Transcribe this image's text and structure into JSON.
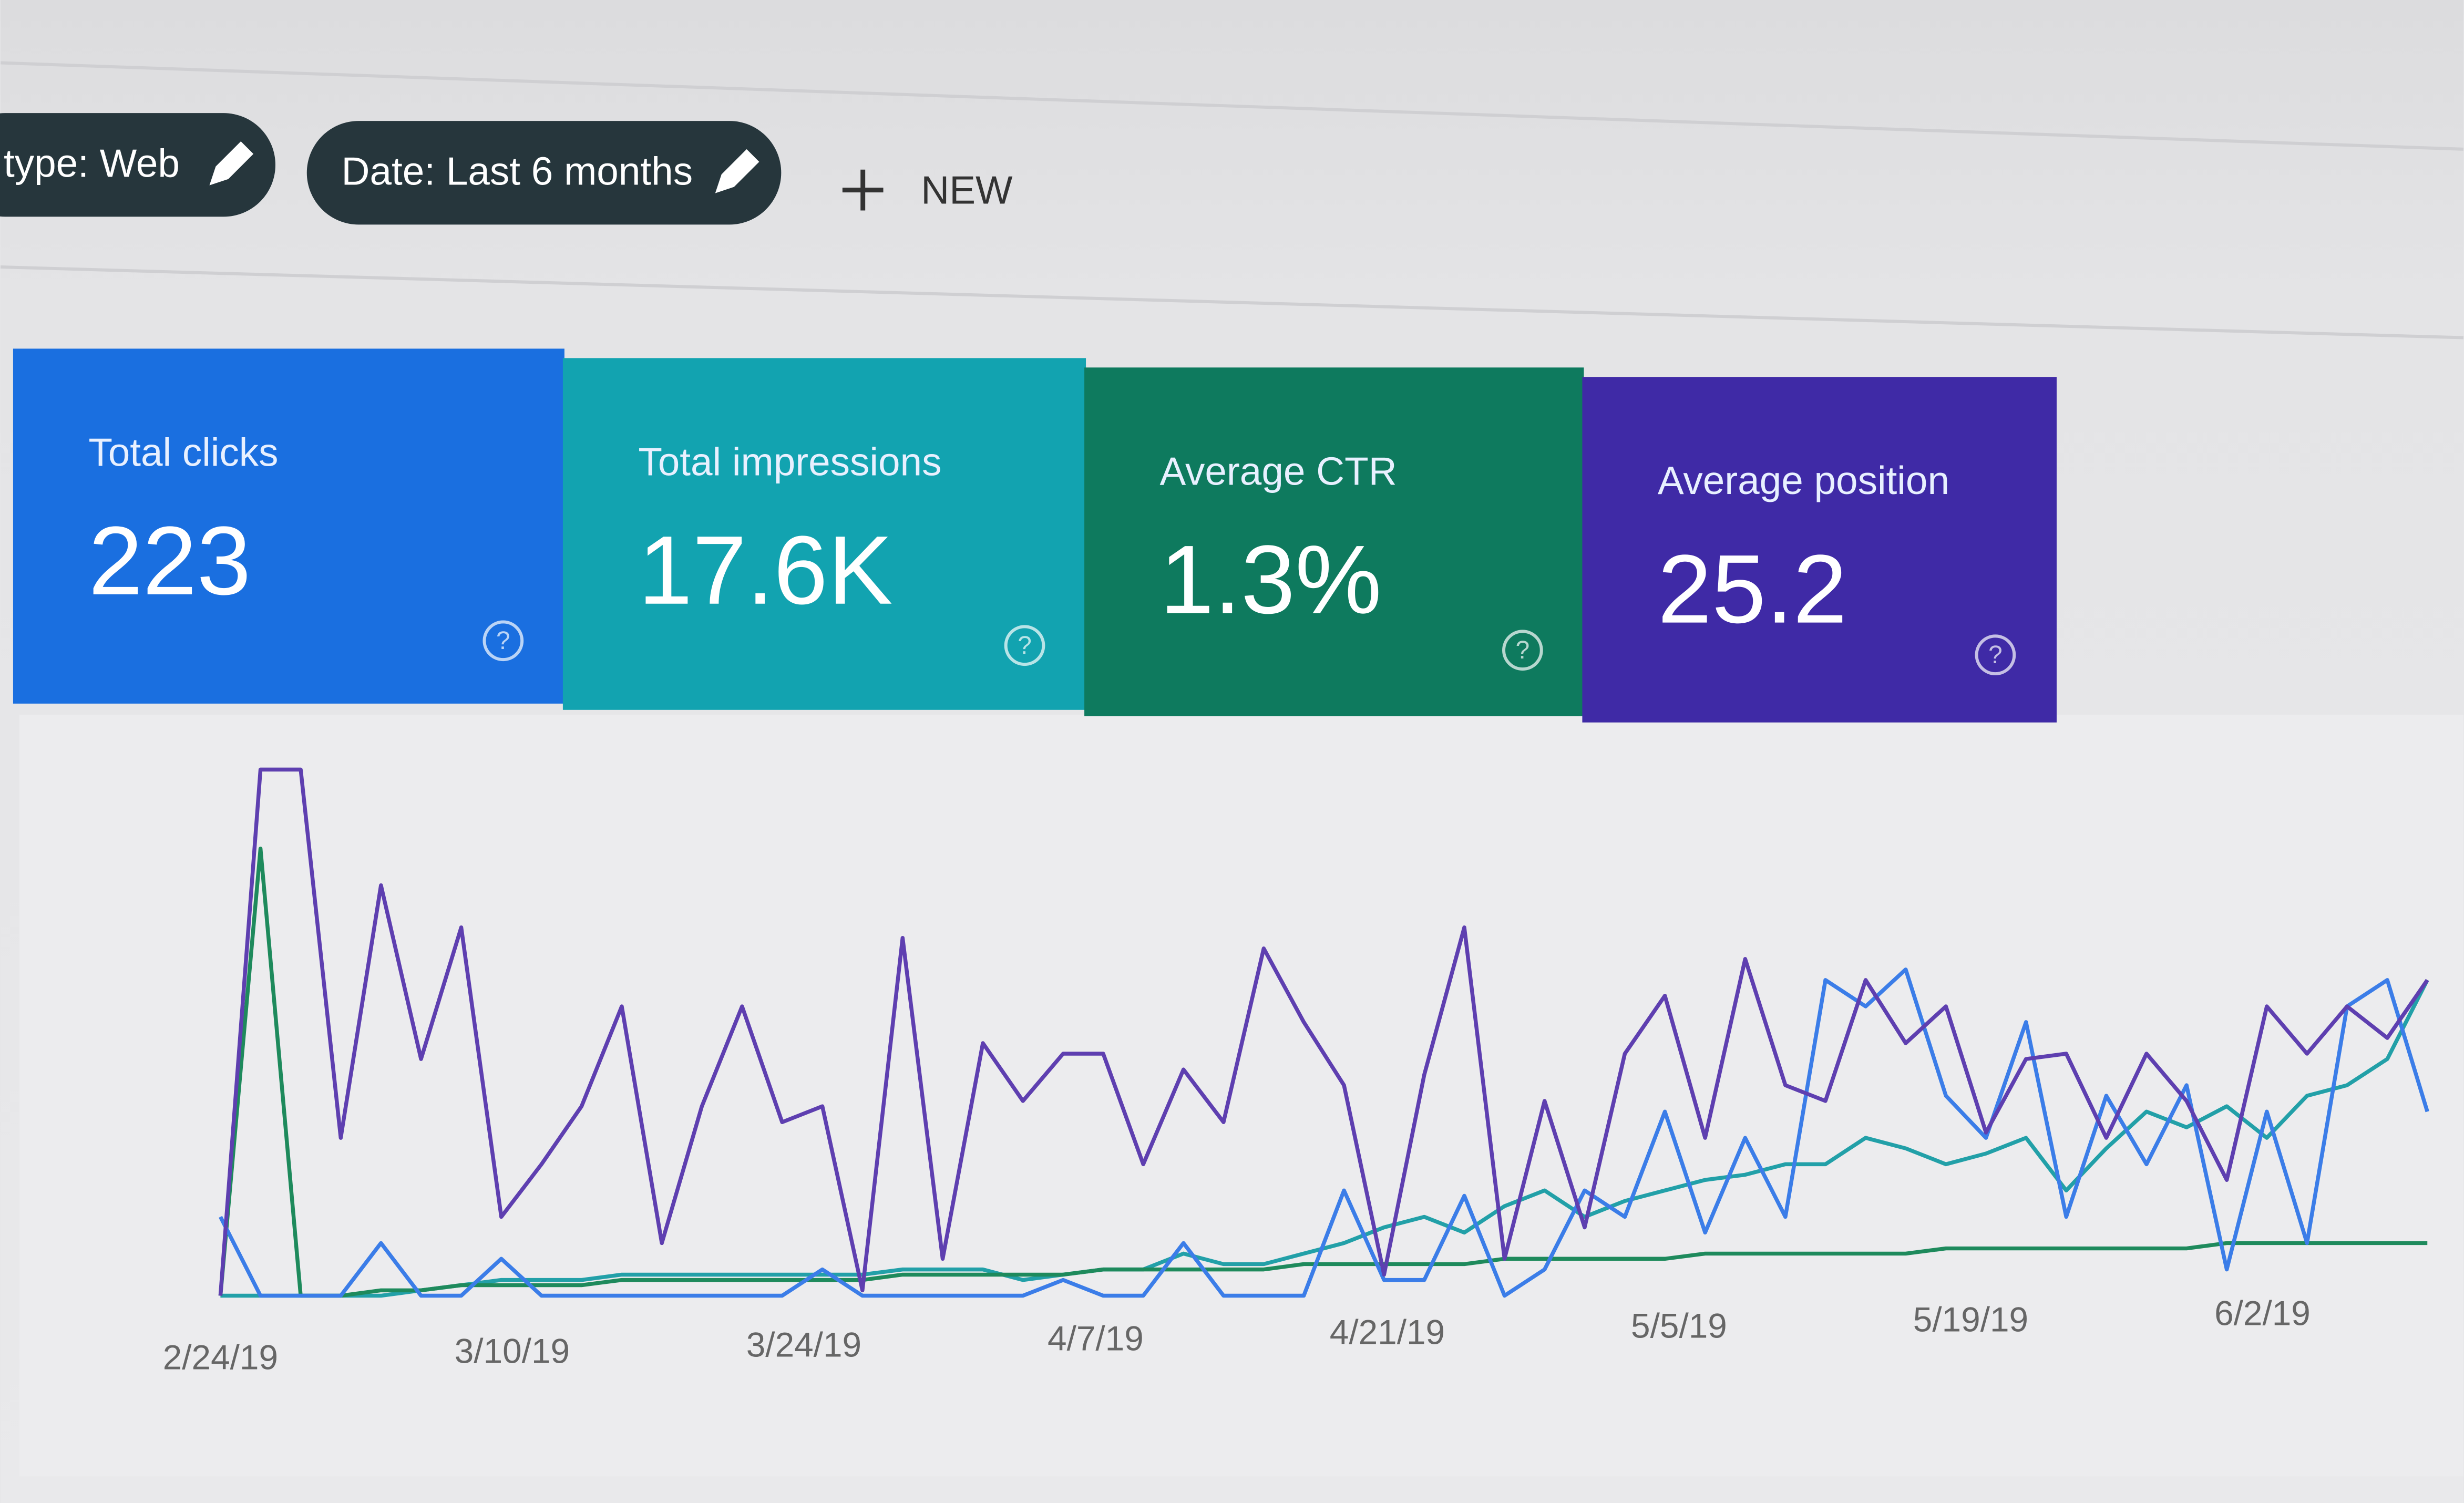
{
  "filters": [
    "type: Web",
    "Date: Last 6 months"
  ],
  "new_button": "NEW",
  "cards": [
    {
      "label": "Total clicks",
      "value": "223",
      "color": "#1a6fe0",
      "line_color": "#3b7de8",
      "trend": [
        15,
        0,
        0,
        0,
        10,
        0,
        0,
        7,
        0,
        0,
        0,
        0,
        0,
        0,
        0,
        5,
        0,
        0,
        0,
        0,
        0,
        3,
        0,
        0,
        10,
        0,
        0,
        0,
        20,
        3,
        3,
        19,
        0,
        5,
        20,
        15,
        35,
        12,
        30,
        15,
        60,
        55,
        62,
        38,
        30,
        52,
        15,
        38,
        25,
        40,
        5,
        35,
        10,
        55,
        60,
        35
      ]
    },
    {
      "label": "Total impressions",
      "value": "17.6K",
      "color": "#12a3b0",
      "line_color": "#5e3fb0",
      "trend": [
        0,
        100,
        100,
        30,
        78,
        45,
        70,
        15,
        25,
        36,
        55,
        10,
        36,
        55,
        33,
        36,
        1,
        68,
        7,
        48,
        37,
        46,
        46,
        25,
        43,
        33,
        66,
        52,
        40,
        4,
        42,
        70,
        7,
        37,
        13,
        46,
        57,
        30,
        64,
        40,
        37,
        60,
        48,
        55,
        31,
        45,
        46,
        30,
        46,
        37,
        22,
        55,
        46,
        55,
        49,
        60
      ]
    },
    {
      "label": "Average CTR",
      "value": "1.3%",
      "color": "#0e7a5e",
      "line_color": "#1e8a5c",
      "trend": [
        0,
        85,
        0,
        0,
        1,
        1,
        2,
        2,
        2,
        2,
        3,
        3,
        3,
        3,
        3,
        3,
        3,
        4,
        4,
        4,
        4,
        4,
        5,
        5,
        5,
        5,
        5,
        6,
        6,
        6,
        6,
        6,
        7,
        7,
        7,
        7,
        7,
        8,
        8,
        8,
        8,
        8,
        8,
        9,
        9,
        9,
        9,
        9,
        9,
        9,
        10,
        10,
        10,
        10,
        10,
        10
      ]
    },
    {
      "label": "Average position",
      "value": "25.2",
      "color": "#3f2aa6",
      "line_color": "#22a0a8",
      "trend": [
        0,
        0,
        0,
        0,
        0,
        1,
        2,
        3,
        3,
        3,
        4,
        4,
        4,
        4,
        4,
        4,
        4,
        5,
        5,
        5,
        3,
        4,
        5,
        5,
        8,
        6,
        6,
        8,
        10,
        13,
        15,
        12,
        17,
        20,
        15,
        18,
        20,
        22,
        23,
        25,
        25,
        30,
        28,
        25,
        27,
        30,
        20,
        28,
        35,
        32,
        36,
        30,
        38,
        40,
        45,
        60
      ]
    }
  ],
  "x_labels": [
    "2/24/19",
    "3/10/19",
    "3/24/19",
    "4/7/19",
    "4/21/19",
    "5/5/19",
    "5/19/19",
    "6/2/19"
  ]
}
